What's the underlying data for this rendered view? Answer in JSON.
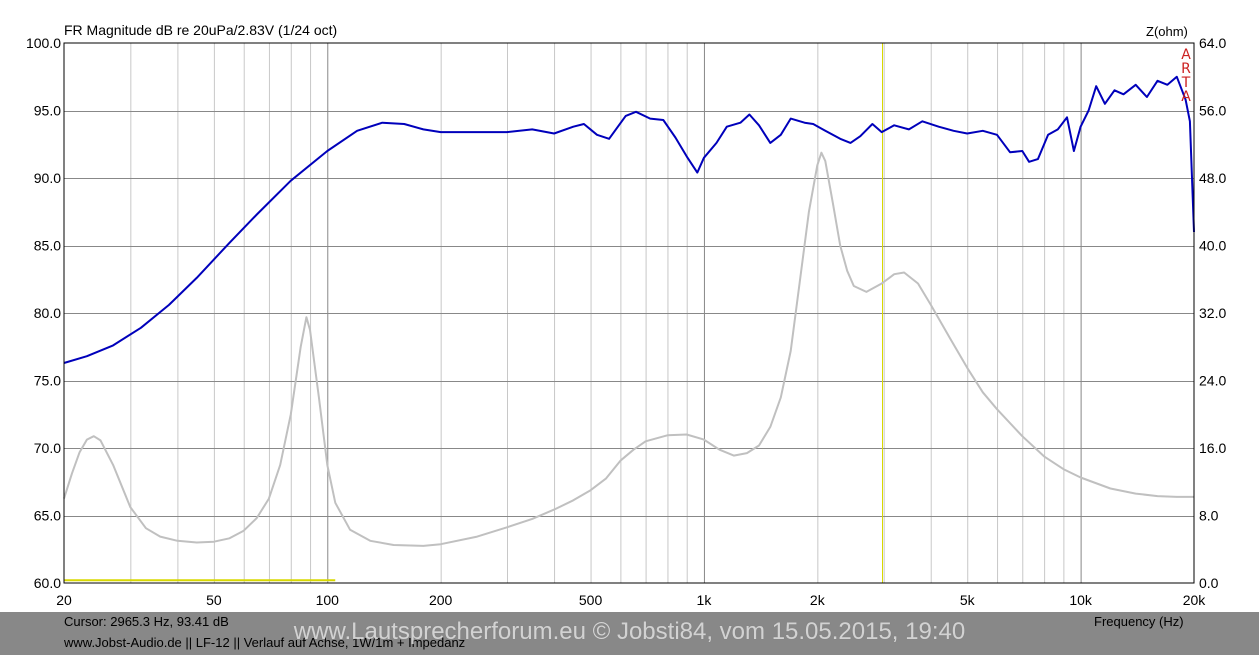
{
  "chart_data": {
    "type": "line",
    "title": "FR Magnitude dB re 20uPa/2.83V (1/24 oct)",
    "xlabel": "Frequency (Hz)",
    "ylabel": "",
    "y2label": "Z(ohm)",
    "xscale": "log",
    "xlim": [
      20,
      20000
    ],
    "ylim": [
      60,
      100
    ],
    "y2lim": [
      0,
      64
    ],
    "grid": true,
    "xticks": [
      {
        "value": 20,
        "label": "20"
      },
      {
        "value": 50,
        "label": "50"
      },
      {
        "value": 100,
        "label": "100"
      },
      {
        "value": 200,
        "label": "200"
      },
      {
        "value": 500,
        "label": "500"
      },
      {
        "value": 1000,
        "label": "1k"
      },
      {
        "value": 2000,
        "label": "2k"
      },
      {
        "value": 5000,
        "label": "5k"
      },
      {
        "value": 10000,
        "label": "10k"
      },
      {
        "value": 20000,
        "label": "20k"
      }
    ],
    "yticks": [
      "60.0",
      "65.0",
      "70.0",
      "75.0",
      "80.0",
      "85.0",
      "90.0",
      "95.0",
      "100.0"
    ],
    "y2ticks": [
      "0.0",
      "8.0",
      "16.0",
      "24.0",
      "32.0",
      "40.0",
      "48.0",
      "56.0",
      "64.0"
    ],
    "cursor": {
      "freq": 2965.3,
      "db": 93.41
    },
    "band": {
      "from": 20,
      "to": 105,
      "db": 60.2
    },
    "series": [
      {
        "axis": "left",
        "color": "#0000bb",
        "points": [
          [
            20,
            76.3
          ],
          [
            23,
            76.8
          ],
          [
            27,
            77.6
          ],
          [
            32,
            78.9
          ],
          [
            38,
            80.6
          ],
          [
            45,
            82.6
          ],
          [
            55,
            85.2
          ],
          [
            65,
            87.3
          ],
          [
            80,
            89.8
          ],
          [
            100,
            92.0
          ],
          [
            120,
            93.5
          ],
          [
            140,
            94.1
          ],
          [
            160,
            94.0
          ],
          [
            180,
            93.6
          ],
          [
            200,
            93.4
          ],
          [
            250,
            93.4
          ],
          [
            300,
            93.4
          ],
          [
            350,
            93.6
          ],
          [
            400,
            93.3
          ],
          [
            450,
            93.8
          ],
          [
            480,
            94.0
          ],
          [
            520,
            93.2
          ],
          [
            560,
            92.9
          ],
          [
            620,
            94.6
          ],
          [
            660,
            94.9
          ],
          [
            720,
            94.4
          ],
          [
            780,
            94.3
          ],
          [
            840,
            93.0
          ],
          [
            900,
            91.6
          ],
          [
            960,
            90.4
          ],
          [
            1000,
            91.5
          ],
          [
            1080,
            92.6
          ],
          [
            1150,
            93.8
          ],
          [
            1250,
            94.1
          ],
          [
            1320,
            94.7
          ],
          [
            1400,
            93.9
          ],
          [
            1500,
            92.6
          ],
          [
            1600,
            93.2
          ],
          [
            1700,
            94.4
          ],
          [
            1850,
            94.1
          ],
          [
            1950,
            94.0
          ],
          [
            2100,
            93.5
          ],
          [
            2300,
            92.9
          ],
          [
            2450,
            92.6
          ],
          [
            2600,
            93.1
          ],
          [
            2800,
            94.0
          ],
          [
            2965,
            93.4
          ],
          [
            3200,
            93.9
          ],
          [
            3500,
            93.6
          ],
          [
            3800,
            94.2
          ],
          [
            4200,
            93.8
          ],
          [
            4600,
            93.5
          ],
          [
            5000,
            93.3
          ],
          [
            5500,
            93.5
          ],
          [
            6000,
            93.2
          ],
          [
            6500,
            91.9
          ],
          [
            7000,
            92.0
          ],
          [
            7300,
            91.2
          ],
          [
            7700,
            91.4
          ],
          [
            8200,
            93.2
          ],
          [
            8700,
            93.6
          ],
          [
            9200,
            94.5
          ],
          [
            9600,
            92.0
          ],
          [
            10000,
            93.8
          ],
          [
            10500,
            95.0
          ],
          [
            11000,
            96.8
          ],
          [
            11600,
            95.5
          ],
          [
            12300,
            96.5
          ],
          [
            13000,
            96.2
          ],
          [
            14000,
            96.9
          ],
          [
            15000,
            96.0
          ],
          [
            16000,
            97.2
          ],
          [
            17000,
            96.9
          ],
          [
            18000,
            97.5
          ],
          [
            19000,
            95.8
          ],
          [
            19500,
            94.2
          ],
          [
            20000,
            86.0
          ]
        ]
      },
      {
        "axis": "right",
        "color": "#c0c0c0",
        "points": [
          [
            20,
            10.0
          ],
          [
            21,
            13.0
          ],
          [
            22,
            15.5
          ],
          [
            23,
            17.0
          ],
          [
            24,
            17.4
          ],
          [
            25,
            16.9
          ],
          [
            27,
            14.0
          ],
          [
            30,
            9.0
          ],
          [
            33,
            6.5
          ],
          [
            36,
            5.5
          ],
          [
            40,
            5.0
          ],
          [
            45,
            4.8
          ],
          [
            50,
            4.9
          ],
          [
            55,
            5.3
          ],
          [
            60,
            6.2
          ],
          [
            65,
            7.7
          ],
          [
            70,
            10.0
          ],
          [
            75,
            14.0
          ],
          [
            80,
            20.0
          ],
          [
            85,
            28.0
          ],
          [
            88,
            31.5
          ],
          [
            90,
            30.0
          ],
          [
            95,
            22.0
          ],
          [
            100,
            14.0
          ],
          [
            105,
            9.5
          ],
          [
            115,
            6.3
          ],
          [
            130,
            5.0
          ],
          [
            150,
            4.5
          ],
          [
            180,
            4.4
          ],
          [
            200,
            4.6
          ],
          [
            250,
            5.5
          ],
          [
            300,
            6.6
          ],
          [
            350,
            7.6
          ],
          [
            400,
            8.7
          ],
          [
            450,
            9.8
          ],
          [
            500,
            11.0
          ],
          [
            550,
            12.4
          ],
          [
            600,
            14.5
          ],
          [
            650,
            15.8
          ],
          [
            700,
            16.8
          ],
          [
            800,
            17.5
          ],
          [
            900,
            17.6
          ],
          [
            1000,
            17.0
          ],
          [
            1100,
            15.8
          ],
          [
            1200,
            15.1
          ],
          [
            1300,
            15.4
          ],
          [
            1400,
            16.3
          ],
          [
            1500,
            18.5
          ],
          [
            1600,
            22.0
          ],
          [
            1700,
            27.5
          ],
          [
            1800,
            36.0
          ],
          [
            1900,
            44.0
          ],
          [
            2000,
            49.5
          ],
          [
            2050,
            51.0
          ],
          [
            2100,
            50.0
          ],
          [
            2200,
            45.0
          ],
          [
            2300,
            40.0
          ],
          [
            2400,
            37.0
          ],
          [
            2500,
            35.2
          ],
          [
            2700,
            34.5
          ],
          [
            2965,
            35.5
          ],
          [
            3200,
            36.6
          ],
          [
            3400,
            36.8
          ],
          [
            3700,
            35.5
          ],
          [
            4000,
            33.0
          ],
          [
            4500,
            29.0
          ],
          [
            5000,
            25.5
          ],
          [
            5500,
            22.6
          ],
          [
            6000,
            20.6
          ],
          [
            7000,
            17.4
          ],
          [
            8000,
            15.0
          ],
          [
            9000,
            13.5
          ],
          [
            10000,
            12.5
          ],
          [
            12000,
            11.2
          ],
          [
            14000,
            10.6
          ],
          [
            16000,
            10.3
          ],
          [
            18000,
            10.2
          ],
          [
            20000,
            10.2
          ]
        ]
      }
    ]
  },
  "readout": {
    "cursor_text": "Cursor: 2965.3 Hz, 93.41 dB",
    "footer_text": "www.Jobst-Audio.de  ||  LF-12  ||  Verlauf auf Achse, 1W/1m + Impedanz"
  },
  "watermark": "www.Lautsprecherforum.eu © Jobsti84, vom 15.05.2015, 19:40",
  "logo": {
    "text": "ARTA",
    "letters": [
      "A",
      "R",
      "T",
      "A"
    ]
  },
  "colors": {
    "fr_curve": "#0000bb",
    "impedance_curve": "#c0c0c0",
    "cursor_line": "#d8d800",
    "major_grid": "#888888",
    "minor_grid": "#c8c8c8",
    "footer_band": "#888888",
    "logo": "#cc2222"
  }
}
